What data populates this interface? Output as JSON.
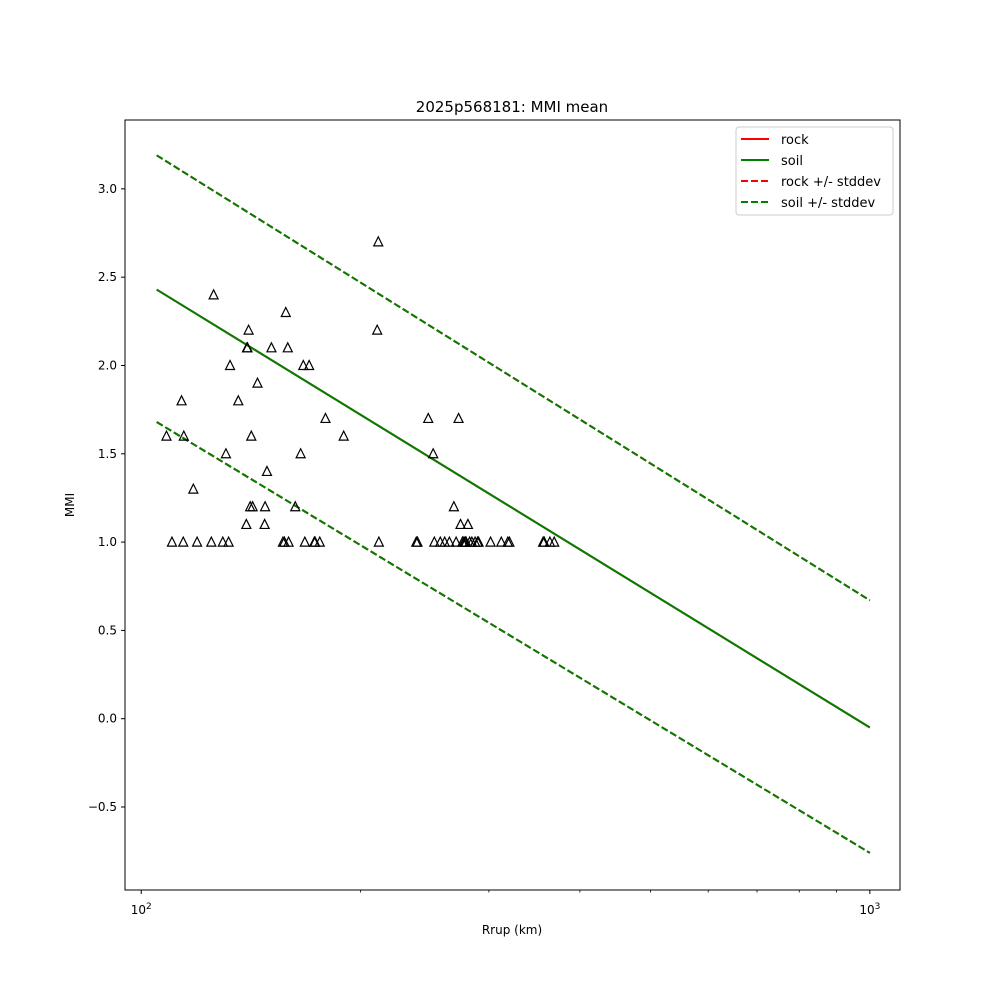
{
  "chart_data": {
    "type": "scatter",
    "title": "2025p568181: MMI mean",
    "xlabel": "Rrup (km)",
    "ylabel": "MMI",
    "xscale": "log",
    "xlim": [
      95,
      1100
    ],
    "ylim": [
      -0.97,
      3.39
    ],
    "grid": false,
    "legend_position": "top-right",
    "x_ticks": [
      {
        "value": 100,
        "base": "10",
        "exp": "2"
      },
      {
        "value": 1000,
        "base": "10",
        "exp": "3"
      }
    ],
    "x_minor_ticks": [
      200,
      300,
      400,
      500,
      600,
      700,
      800,
      900
    ],
    "y_ticks": [
      {
        "value": -0.5,
        "label": "−0.5"
      },
      {
        "value": 0.0,
        "label": "0.0"
      },
      {
        "value": 0.5,
        "label": "0.5"
      },
      {
        "value": 1.0,
        "label": "1.0"
      },
      {
        "value": 1.5,
        "label": "1.5"
      },
      {
        "value": 2.0,
        "label": "2.0"
      },
      {
        "value": 2.5,
        "label": "2.5"
      },
      {
        "value": 3.0,
        "label": "3.0"
      }
    ],
    "lines": [
      {
        "name": "rock",
        "color": "#ff0000",
        "style": "solid",
        "x": [
          105.0,
          1000.0
        ],
        "y": [
          2.43,
          -0.05
        ]
      },
      {
        "name": "soil",
        "color": "#008000",
        "style": "solid",
        "x": [
          105.0,
          1000.0
        ],
        "y": [
          2.43,
          -0.05
        ]
      },
      {
        "name": "rock +/- stddev",
        "color": "#ff0000",
        "style": "dashed",
        "x": [
          105.0,
          1000.0
        ],
        "y": [
          3.19,
          0.67
        ]
      },
      {
        "name": "rock +/- stddev",
        "color": "#ff0000",
        "style": "dashed",
        "x": [
          105.0,
          1000.0
        ],
        "y": [
          1.68,
          -0.76
        ]
      },
      {
        "name": "soil +/- stddev",
        "color": "#008000",
        "style": "dashed",
        "x": [
          105.0,
          1000.0
        ],
        "y": [
          3.19,
          0.67
        ]
      },
      {
        "name": "soil +/- stddev",
        "color": "#008000",
        "style": "dashed",
        "x": [
          105.0,
          1000.0
        ],
        "y": [
          1.68,
          -0.76
        ]
      }
    ],
    "legend": [
      {
        "label": "rock",
        "color": "#ff0000",
        "style": "solid"
      },
      {
        "label": "soil",
        "color": "#008000",
        "style": "solid"
      },
      {
        "label": "rock +/- stddev",
        "color": "#ff0000",
        "style": "dashed"
      },
      {
        "label": "soil +/- stddev",
        "color": "#008000",
        "style": "dashed"
      }
    ],
    "points": {
      "marker": "triangle",
      "edge_color": "#000000",
      "x": [
        108.3,
        110.2,
        113.6,
        114.2,
        114.4,
        117.9,
        119.3,
        124.8,
        125.7,
        129.4,
        130.7,
        131.8,
        132.4,
        135.9,
        139.4,
        139.7,
        139.9,
        140.4,
        141.1,
        141.6,
        142.2,
        144.4,
        147.7,
        147.9,
        148.8,
        150.9,
        156.5,
        157.2,
        157.9,
        158.9,
        159.3,
        162.7,
        165.5,
        166.9,
        167.7,
        170.0,
        172.8,
        173.2,
        175.8,
        179.0,
        189.6,
        210.8,
        211.5,
        211.9,
        238.5,
        239.4,
        247.7,
        251.6,
        252.5,
        257.3,
        260.9,
        264.8,
        268.6,
        270.5,
        272.6,
        274.3,
        276.0,
        277.2,
        278.3,
        279.1,
        280.8,
        282.3,
        284.3,
        287.2,
        289.5,
        290.4,
        301.6,
        312.0,
        318.5,
        320.1,
        356.1,
        357.3,
        363.8,
        368.8
      ],
      "y": [
        1.6,
        1.0,
        1.8,
        1.0,
        1.6,
        1.3,
        1.0,
        1.0,
        2.4,
        1.0,
        1.5,
        1.0,
        2.0,
        1.8,
        1.1,
        2.1,
        2.1,
        2.2,
        1.2,
        1.6,
        1.2,
        1.9,
        1.1,
        1.2,
        1.4,
        2.1,
        1.0,
        1.0,
        2.3,
        2.1,
        1.0,
        1.2,
        1.5,
        2.0,
        1.0,
        2.0,
        1.0,
        1.0,
        1.0,
        1.7,
        1.6,
        2.2,
        2.7,
        1.0,
        1.0,
        1.0,
        1.7,
        1.5,
        1.0,
        1.0,
        1.0,
        1.0,
        1.2,
        1.0,
        1.7,
        1.1,
        1.0,
        1.0,
        1.0,
        1.0,
        1.1,
        1.0,
        1.0,
        1.0,
        1.0,
        1.0,
        1.0,
        1.0,
        1.0,
        1.0,
        1.0,
        1.0,
        1.0,
        1.0
      ]
    }
  }
}
